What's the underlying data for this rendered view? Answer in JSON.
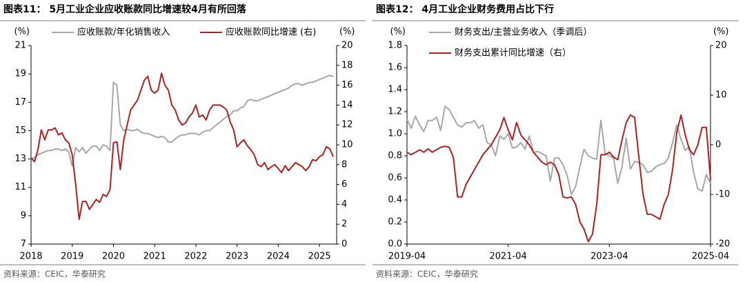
{
  "chart_data": [
    {
      "type": "line",
      "title": "图表11： 5月工业企业应收账款同比增速较4月有所回落",
      "source": "资料来源：CEIC，华泰研究",
      "y_unit": "(%)",
      "y2_unit": "(%)",
      "legend": "top",
      "categories": [
        "2018",
        null,
        null,
        null,
        null,
        null,
        null,
        null,
        null,
        null,
        null,
        null,
        "2019",
        null,
        null,
        null,
        null,
        null,
        null,
        null,
        null,
        null,
        null,
        null,
        "2020",
        null,
        null,
        null,
        null,
        null,
        null,
        null,
        null,
        null,
        null,
        null,
        "2021",
        null,
        null,
        null,
        null,
        null,
        null,
        null,
        null,
        null,
        null,
        null,
        "2022",
        null,
        null,
        null,
        null,
        null,
        null,
        null,
        null,
        null,
        null,
        null,
        "2023",
        null,
        null,
        null,
        null,
        null,
        null,
        null,
        null,
        null,
        null,
        null,
        "2024",
        null,
        null,
        null,
        null,
        null,
        null,
        null,
        null,
        null,
        null,
        null,
        "2025",
        null,
        null,
        null,
        null
      ],
      "ylim": [
        7,
        21
      ],
      "yticks": [
        7,
        9,
        11,
        13,
        15,
        17,
        19,
        21
      ],
      "y2lim": [
        0,
        20
      ],
      "y2ticks": [
        0,
        2,
        4,
        6,
        8,
        10,
        12,
        14,
        16,
        18,
        20
      ],
      "series": [
        {
          "name": "应收账款/年化销售收入",
          "color": "#a6a6a6",
          "values": [
            13.0,
            13.1,
            13.3,
            13.4,
            13.5,
            13.6,
            13.6,
            13.7,
            13.7,
            13.6,
            13.7,
            13.5,
            12.5,
            13.8,
            13.5,
            13.8,
            13.4,
            13.7,
            13.9,
            13.9,
            13.6,
            14.0,
            13.9,
            13.6,
            18.4,
            18.2,
            15.4,
            15.0,
            15.1,
            15.0,
            15.0,
            15.1,
            14.9,
            14.8,
            14.8,
            14.7,
            14.6,
            14.5,
            14.6,
            14.5,
            14.2,
            14.2,
            14.4,
            14.6,
            14.7,
            14.7,
            14.8,
            14.8,
            14.8,
            14.7,
            14.9,
            15.0,
            15.0,
            15.2,
            15.4,
            15.6,
            15.8,
            16.0,
            16.1,
            16.4,
            16.4,
            16.6,
            16.7,
            17.1,
            17.2,
            17.1,
            17.1,
            17.2,
            17.3,
            17.4,
            17.5,
            17.6,
            17.7,
            17.8,
            17.9,
            18.0,
            18.2,
            18.3,
            18.3,
            18.2,
            18.3,
            18.4,
            18.4,
            18.5,
            18.6,
            18.7,
            18.8,
            18.9,
            18.8
          ]
        },
        {
          "name": "应收账款同比增速 (右)",
          "color": "#b01e1e",
          "axis": "y2",
          "values": [
            8.7,
            8.3,
            9.5,
            11.5,
            10.5,
            11.5,
            11.5,
            11.7,
            11.0,
            11.2,
            10.5,
            10.2,
            9.0,
            6.0,
            2.5,
            4.3,
            4.3,
            3.5,
            4.0,
            4.5,
            4.2,
            5.0,
            4.8,
            5.5,
            10.2,
            10.3,
            7.5,
            10.5,
            12.0,
            13.5,
            14.0,
            14.5,
            15.5,
            16.5,
            16.9,
            15.5,
            15.2,
            15.5,
            17.2,
            16.0,
            15.5,
            14.0,
            13.5,
            12.5,
            12.0,
            12.2,
            12.8,
            13.2,
            14.0,
            12.8,
            13.0,
            12.5,
            13.5,
            14.0,
            14.0,
            14.0,
            13.8,
            13.5,
            12.3,
            11.5,
            9.8,
            10.2,
            10.5,
            9.9,
            9.5,
            9.0,
            8.0,
            7.8,
            8.2,
            7.5,
            7.8,
            8.0,
            7.6,
            7.2,
            7.9,
            7.4,
            7.8,
            8.2,
            8.0,
            7.8,
            7.4,
            7.8,
            8.5,
            8.4,
            8.8,
            9.0,
            9.8,
            9.6,
            8.8
          ]
        }
      ]
    },
    {
      "type": "line",
      "title": "图表12： 4月工业企业财务费用占比下行",
      "source": "资料来源：CEIC，华泰研究",
      "y_unit": "(%)",
      "y2_unit": "(%)",
      "legend": "top-left",
      "categories": [
        "2019-04",
        null,
        null,
        null,
        null,
        null,
        null,
        null,
        null,
        null,
        null,
        null,
        null,
        null,
        null,
        null,
        null,
        null,
        null,
        null,
        null,
        null,
        null,
        null,
        "2021-04",
        null,
        null,
        null,
        null,
        null,
        null,
        null,
        null,
        null,
        null,
        null,
        null,
        null,
        null,
        null,
        null,
        null,
        null,
        null,
        null,
        null,
        null,
        null,
        "2023-04",
        null,
        null,
        null,
        null,
        null,
        null,
        null,
        null,
        null,
        null,
        null,
        null,
        null,
        null,
        null,
        null,
        null,
        null,
        null,
        null,
        null,
        null,
        null,
        "2025-04"
      ],
      "ylim": [
        0,
        1.8
      ],
      "yticks": [
        {
          "value": 0,
          "label": "0.0"
        },
        0.2,
        0.4,
        0.6,
        0.8,
        {
          "value": 1,
          "label": "1.0"
        },
        1.2,
        1.4,
        1.6,
        1.8
      ],
      "y2lim": [
        -20,
        20
      ],
      "y2ticks": [
        -20,
        -10,
        0,
        10,
        20
      ],
      "series": [
        {
          "name": "财务支出/主营业务收入（季调后）",
          "color": "#a6a6a6",
          "values": [
            1.13,
            1.05,
            1.16,
            1.08,
            1.02,
            1.12,
            1.12,
            1.15,
            1.03,
            1.25,
            1.22,
            1.15,
            1.08,
            1.06,
            1.1,
            1.1,
            1.12,
            1.05,
            1.08,
            0.92,
            0.9,
            0.8,
            0.98,
            0.95,
            1.0,
            0.87,
            0.88,
            0.92,
            0.86,
            0.98,
            0.83,
            0.84,
            0.82,
            0.8,
            0.57,
            0.78,
            0.78,
            0.72,
            0.62,
            0.45,
            0.52,
            0.7,
            0.86,
            0.8,
            0.78,
            0.77,
            1.12,
            0.82,
            0.8,
            0.78,
            0.55,
            0.7,
            0.96,
            0.68,
            0.75,
            0.74,
            0.72,
            0.65,
            0.66,
            0.7,
            0.72,
            0.73,
            0.78,
            0.92,
            1.08,
            0.95,
            0.85,
            0.88,
            0.65,
            0.5,
            0.48,
            0.63,
            0.55
          ]
        },
        {
          "name": "财务支出累计同比增速（右）",
          "color": "#b01e1e",
          "axis": "y2",
          "values": [
            -1.5,
            -2,
            -1.5,
            -1,
            -1.5,
            -0.8,
            -1.5,
            -1,
            -0.5,
            -0.3,
            -0.5,
            -2.5,
            -10.5,
            -10.5,
            -8,
            -6.5,
            -5,
            -3.5,
            -2,
            -1,
            0,
            1.5,
            3,
            5.5,
            3,
            1,
            4.5,
            2,
            1,
            0,
            -1.5,
            -2.5,
            -3.5,
            -4,
            -3.5,
            -4,
            -6,
            -10.5,
            -10.7,
            -10.5,
            -12,
            -15.5,
            -17,
            -19.5,
            -18,
            -12,
            -2,
            -2,
            -1.5,
            -2.5,
            -3,
            1,
            4.5,
            6,
            5.5,
            -2.5,
            -10,
            -14,
            -14,
            -14.5,
            -15,
            -12,
            -10,
            -5,
            2.5,
            6,
            2,
            -1,
            -2,
            0,
            3.5,
            3.5,
            -7
          ]
        }
      ]
    }
  ]
}
